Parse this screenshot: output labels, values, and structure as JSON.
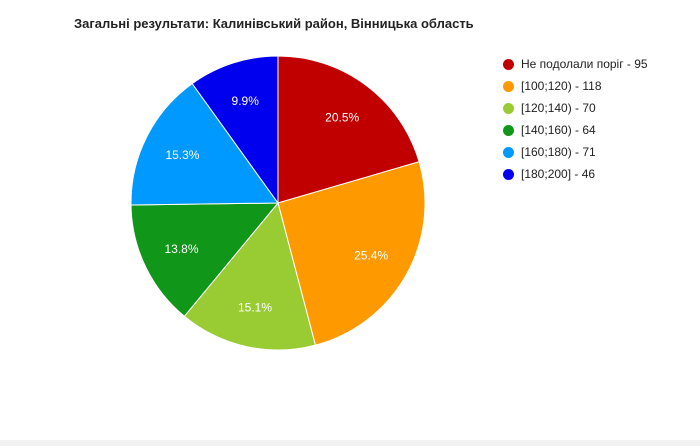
{
  "chart_data": {
    "type": "pie",
    "title": "Загальні результати: Калинівський район, Вінницька область",
    "slices": [
      {
        "label": "Не подолали поріг",
        "value": 95,
        "percent_label": "20.5%",
        "color": "#c00000",
        "legend": "Не подолали поріг - 95"
      },
      {
        "label": "[100;120)",
        "value": 118,
        "percent_label": "25.4%",
        "color": "#ff9900",
        "legend": "[100;120) - 118"
      },
      {
        "label": "[120;140)",
        "value": 70,
        "percent_label": "15.1%",
        "color": "#99cc33",
        "legend": "[120;140) - 70"
      },
      {
        "label": "[140;160)",
        "value": 64,
        "percent_label": "13.8%",
        "color": "#109618",
        "legend": "[140;160) - 64"
      },
      {
        "label": "[160;180)",
        "value": 71,
        "percent_label": "15.3%",
        "color": "#0099ff",
        "legend": "[160;180) - 71"
      },
      {
        "label": "[180;200]",
        "value": 46,
        "percent_label": "9.9%",
        "color": "#0000ee",
        "legend": "[180;200] - 46"
      }
    ],
    "start_angle": "12 o'clock",
    "direction": "clockwise",
    "legend_position": "right"
  }
}
